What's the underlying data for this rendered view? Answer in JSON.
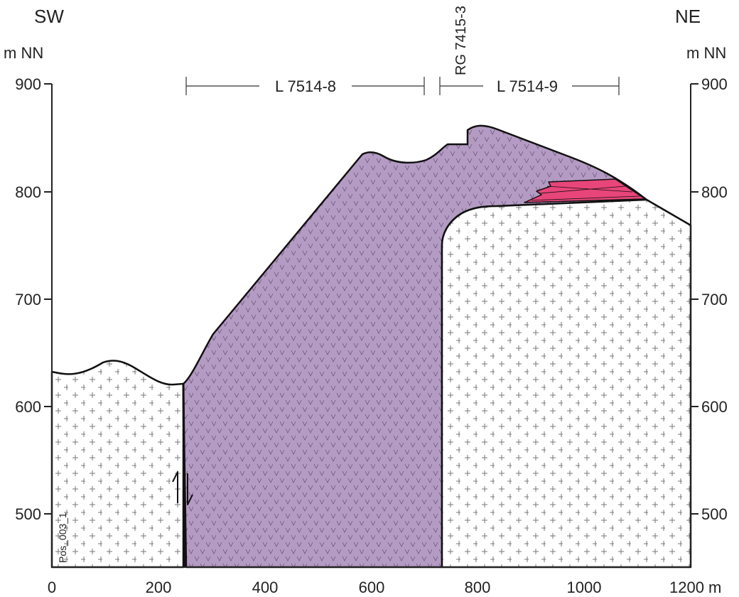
{
  "header": {
    "left": "SW",
    "right": "NE"
  },
  "left_axis": {
    "unit": "m NN",
    "ticks": [
      "900",
      "800",
      "700",
      "600",
      "500"
    ]
  },
  "right_axis": {
    "unit": "m NN",
    "ticks": [
      "900",
      "800",
      "700",
      "600",
      "500"
    ]
  },
  "bottom_axis": {
    "ticks": [
      "0",
      "200",
      "400",
      "600",
      "800",
      "1000",
      "1200 m"
    ]
  },
  "sections": [
    {
      "label": "L 7514-8"
    },
    {
      "label": "L 7514-9"
    }
  ],
  "borehole": "RG 7415-3",
  "profile_id": "Pos_003_1"
}
